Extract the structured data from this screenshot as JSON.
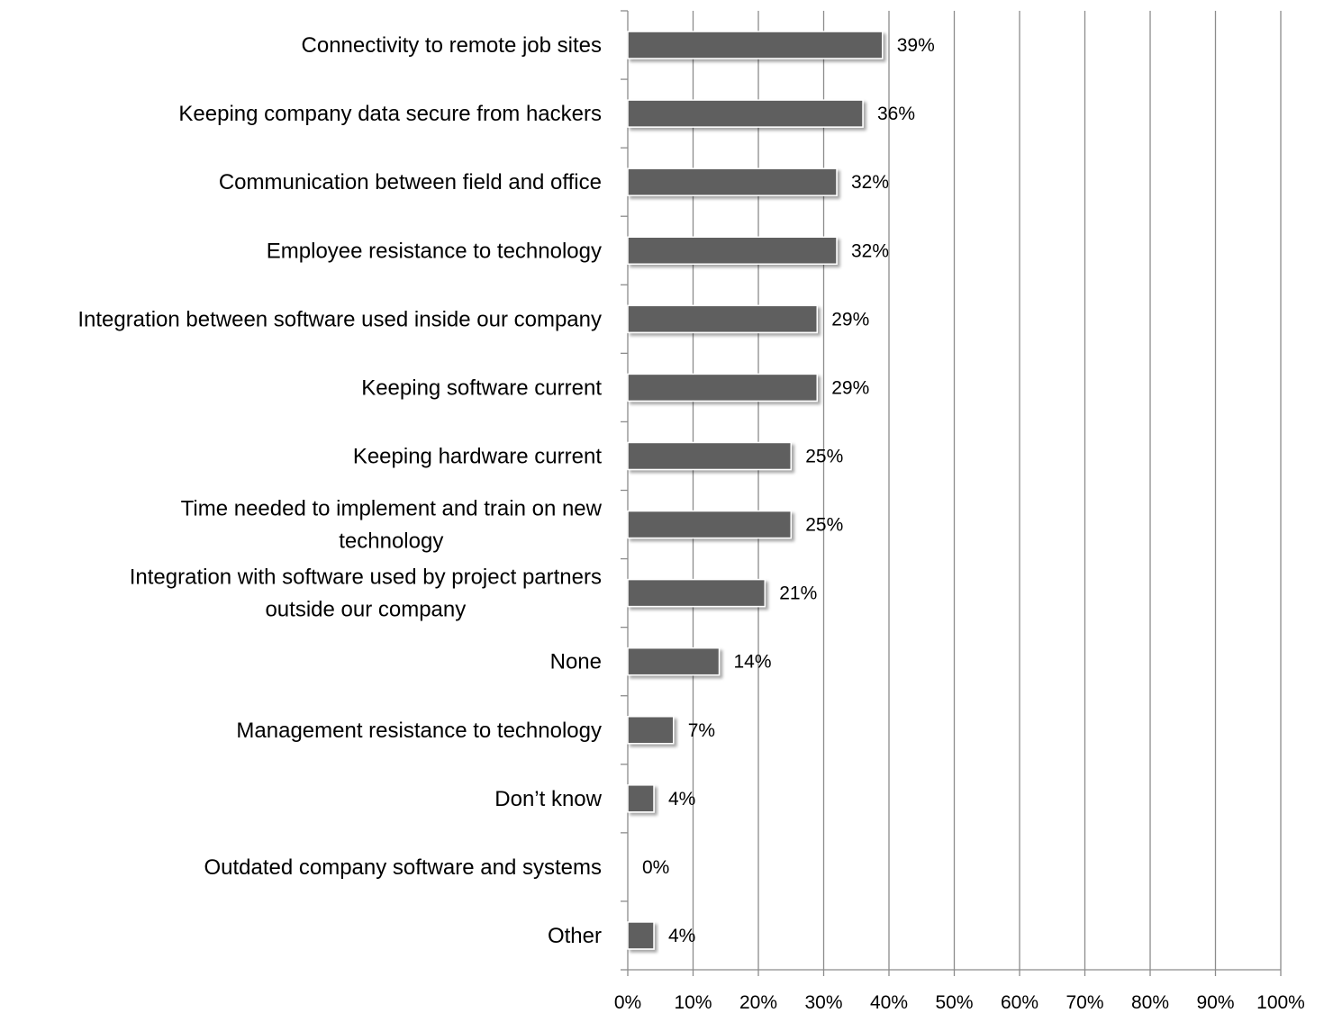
{
  "chart_data": {
    "type": "bar",
    "orientation": "horizontal",
    "title": "",
    "xlabel": "",
    "ylabel": "",
    "xlim": [
      0,
      100
    ],
    "grid": "vertical-major",
    "legend": "none",
    "bar_color": "#5f5f5f",
    "categories": [
      "Connectivity to remote job sites",
      "Keeping company data secure from hackers",
      "Communication between field and office",
      "Employee resistance to technology",
      "Integration between software used inside our company",
      "Keeping software current",
      "Keeping hardware current",
      "Time needed to implement and train on new technology",
      "Integration with software used by project partners outside our company",
      "None",
      "Management resistance to technology",
      "Don’t know",
      "Outdated company software and systems",
      "Other"
    ],
    "category_lines": [
      [
        "Connectivity to remote job sites"
      ],
      [
        "Keeping company data secure from hackers"
      ],
      [
        "Communication between field and office"
      ],
      [
        "Employee resistance to technology"
      ],
      [
        "Integration between software used inside our company"
      ],
      [
        "Keeping software current"
      ],
      [
        "Keeping hardware current"
      ],
      [
        "Time needed to implement and train on new",
        "technology"
      ],
      [
        "Integration with software used by project partners",
        "outside our company"
      ],
      [
        "None"
      ],
      [
        "Management resistance to technology"
      ],
      [
        "Don’t know"
      ],
      [
        "Outdated company software and systems"
      ],
      [
        "Other"
      ]
    ],
    "values": [
      39,
      36,
      32,
      32,
      29,
      29,
      25,
      25,
      21,
      14,
      7,
      4,
      0,
      4
    ],
    "data_labels": [
      "39%",
      "36%",
      "32%",
      "32%",
      "29%",
      "29%",
      "25%",
      "25%",
      "21%",
      "14%",
      "7%",
      "4%",
      "0%",
      "4%"
    ],
    "x_ticks": [
      0,
      10,
      20,
      30,
      40,
      50,
      60,
      70,
      80,
      90,
      100
    ],
    "x_tick_labels": [
      "0%",
      "10%",
      "20%",
      "30%",
      "40%",
      "50%",
      "60%",
      "70%",
      "80%",
      "90%",
      "100%"
    ]
  }
}
